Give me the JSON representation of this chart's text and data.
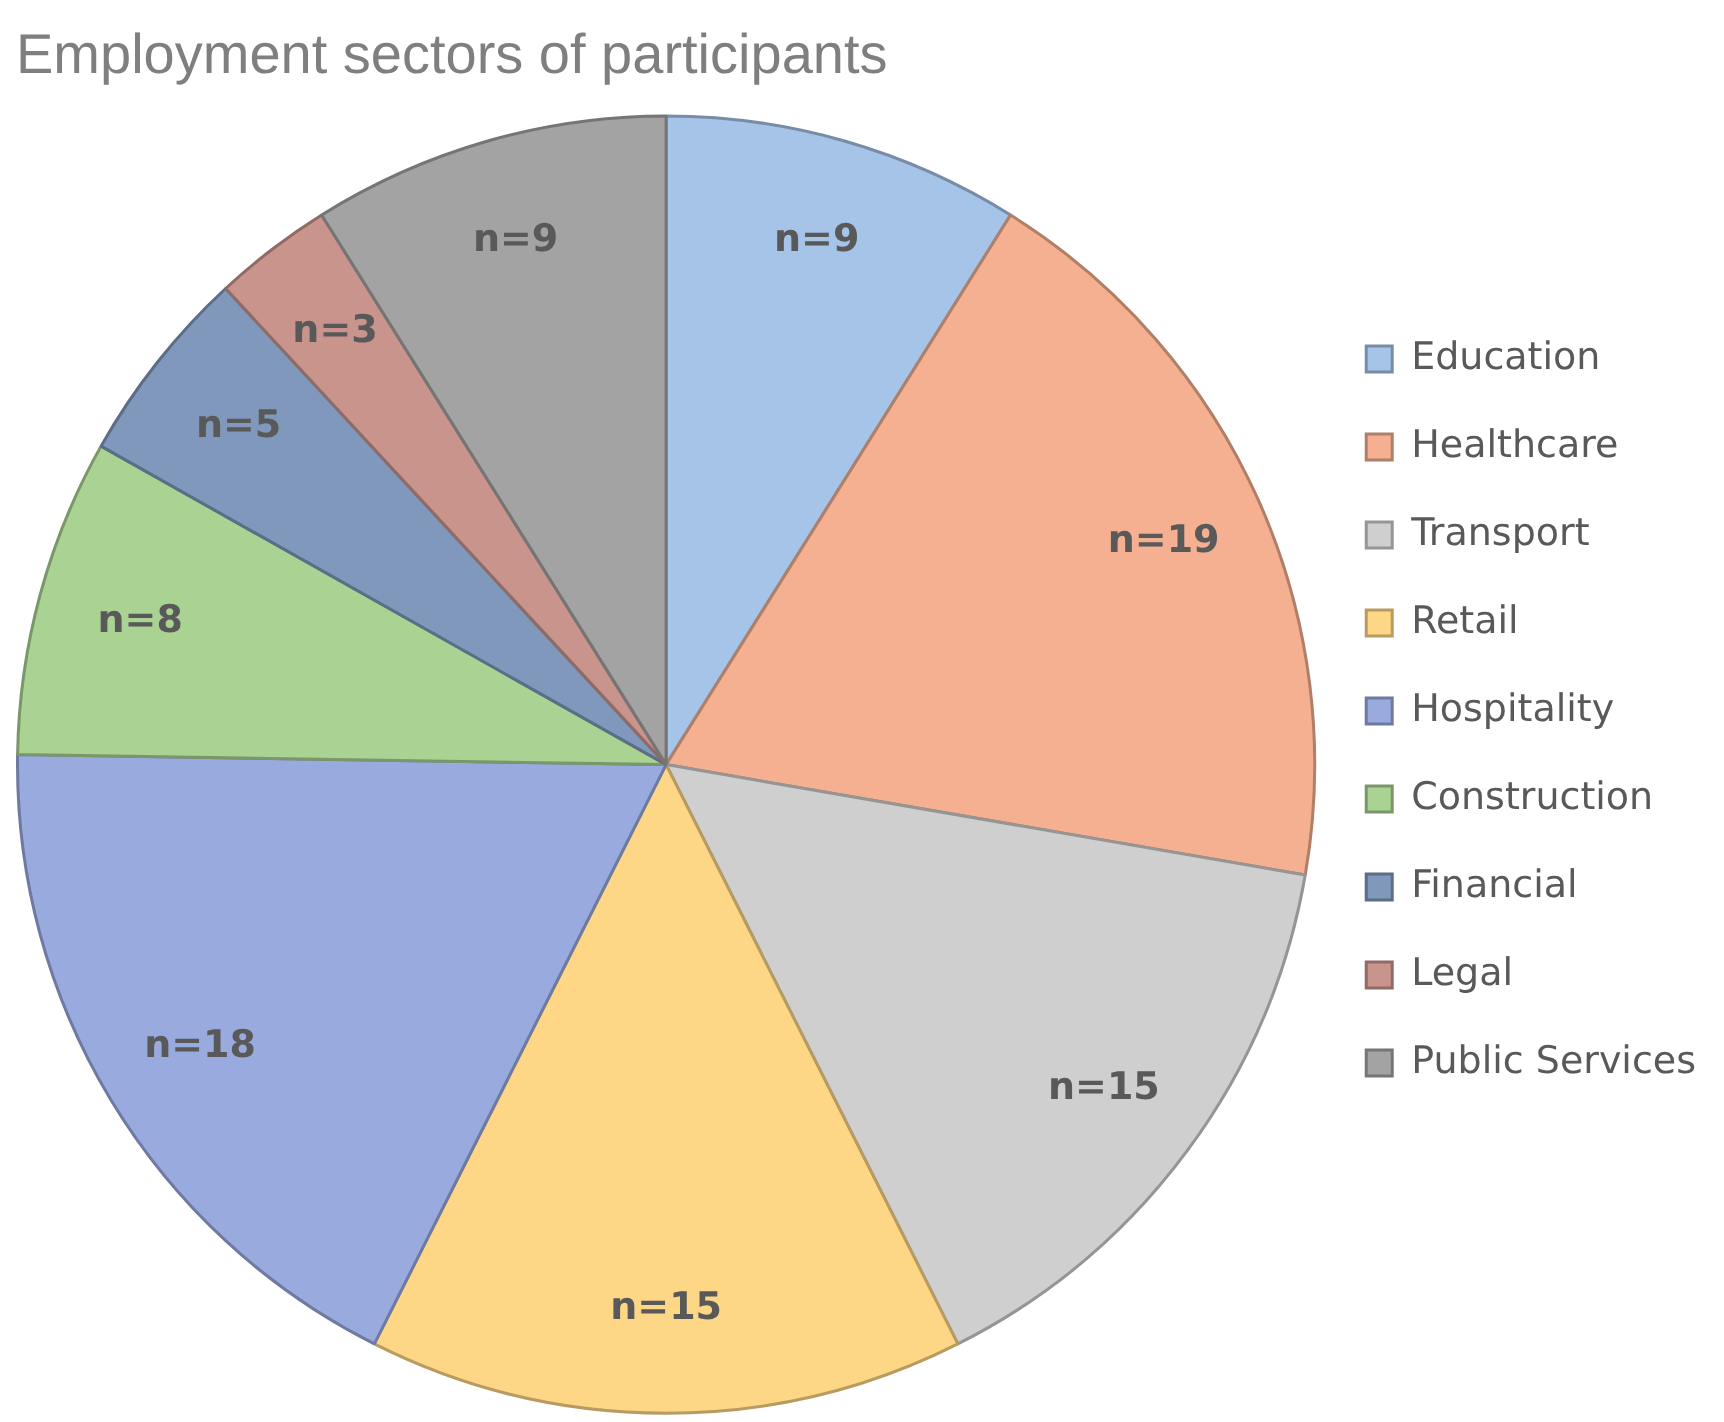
{
  "chart_data": {
    "type": "pie",
    "title": "Employment sectors of participants",
    "categories": [
      "Education",
      "Healthcare",
      "Transport",
      "Retail",
      "Hospitality",
      "Construction",
      "Financial",
      "Legal",
      "Public Services"
    ],
    "values": [
      9,
      19,
      15,
      15,
      18,
      8,
      5,
      3,
      9
    ],
    "colors": [
      "#a6c3e8",
      "#f4b090",
      "#cfcfcf",
      "#fed786",
      "#99aadf",
      "#a9d293",
      "#7f98bb",
      "#c8948c",
      "#a3a3a3"
    ],
    "value_labels": [
      "n=9",
      "n=19",
      "n=15",
      "n=15",
      "n=18",
      "n=8",
      "n=5",
      "n=3",
      "n=9"
    ],
    "legend": "right"
  }
}
